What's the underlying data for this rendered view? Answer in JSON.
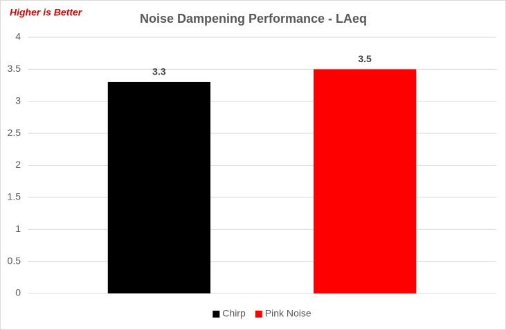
{
  "chart_data": {
    "type": "bar",
    "title": "Noise Dampening Performance - LAeq",
    "annotation": "Higher is Better",
    "categories": [
      null
    ],
    "series": [
      {
        "name": "Chirp",
        "color": "#000000",
        "values": [
          3.3
        ]
      },
      {
        "name": "Pink Noise",
        "color": "#ff0000",
        "values": [
          3.5
        ]
      }
    ],
    "ylim": [
      0,
      4
    ],
    "yticks": [
      0,
      0.5,
      1,
      1.5,
      2,
      2.5,
      3,
      3.5,
      4
    ],
    "grid": true,
    "legend": "bottom"
  }
}
